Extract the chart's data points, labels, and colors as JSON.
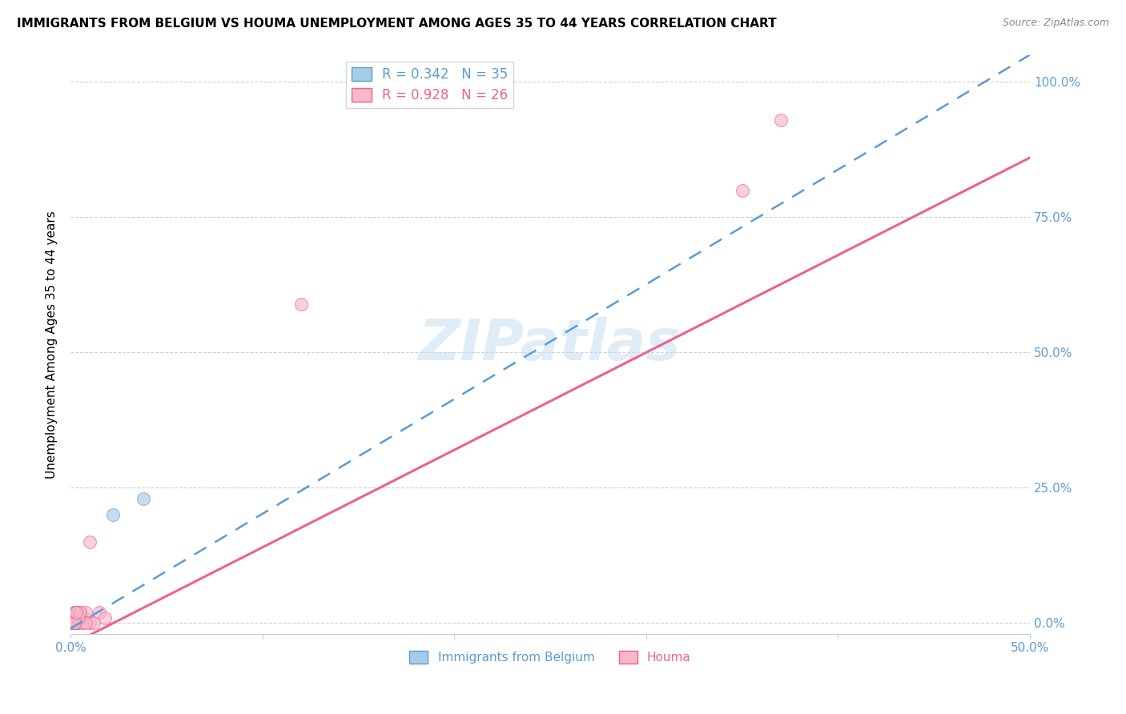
{
  "title": "IMMIGRANTS FROM BELGIUM VS HOUMA UNEMPLOYMENT AMONG AGES 35 TO 44 YEARS CORRELATION CHART",
  "source": "Source: ZipAtlas.com",
  "ylabel": "Unemployment Among Ages 35 to 44 years",
  "xlim": [
    0.0,
    0.5
  ],
  "ylim": [
    -0.02,
    1.05
  ],
  "y_tick_vals": [
    0.0,
    0.25,
    0.5,
    0.75,
    1.0
  ],
  "y_tick_labels": [
    "0.0%",
    "25.0%",
    "50.0%",
    "75.0%",
    "100.0%"
  ],
  "x_tick_vals": [
    0.0,
    0.1,
    0.2,
    0.3,
    0.4,
    0.5
  ],
  "x_tick_labels_show": {
    "0.0": "0.0%",
    "0.5": "50.0%"
  },
  "legend1_label": "R = 0.342   N = 35",
  "legend2_label": "R = 0.928   N = 26",
  "legend_bottom1": "Immigrants from Belgium",
  "legend_bottom2": "Houma",
  "blue_fill": "#a8cce8",
  "blue_edge": "#5b9bd5",
  "pink_fill": "#f7b8c8",
  "pink_edge": "#f06090",
  "pink_line": "#f06090",
  "blue_line": "#5b9bd5",
  "tick_color": "#5b9bd5",
  "watermark_text": "ZIPatlas",
  "watermark_color": "#c8ddf0",
  "title_fontsize": 11,
  "ylabel_fontsize": 11,
  "tick_fontsize": 11,
  "marker_size": 130,
  "blue_points_x": [
    0.002,
    0.003,
    0.001,
    0.002,
    0.003,
    0.001,
    0.003,
    0.001,
    0.002,
    0.003,
    0.001,
    0.002,
    0.001,
    0.002,
    0.003,
    0.001,
    0.002,
    0.001,
    0.002,
    0.001,
    0.001,
    0.002,
    0.001,
    0.001,
    0.002,
    0.001,
    0.001,
    0.002,
    0.001,
    0.002,
    0.001,
    0.002,
    0.003,
    0.022,
    0.038
  ],
  "blue_points_y": [
    0.01,
    0.01,
    0.01,
    0.02,
    0.01,
    0.0,
    0.02,
    0.01,
    0.0,
    0.0,
    0.0,
    0.01,
    0.0,
    0.01,
    0.02,
    0.01,
    0.01,
    0.0,
    0.02,
    0.01,
    0.0,
    0.01,
    0.01,
    0.0,
    0.01,
    0.0,
    0.01,
    0.0,
    0.0,
    0.0,
    0.0,
    0.0,
    0.0,
    0.2,
    0.23
  ],
  "pink_points_x": [
    0.001,
    0.002,
    0.003,
    0.004,
    0.005,
    0.007,
    0.008,
    0.01,
    0.01,
    0.012,
    0.015,
    0.018,
    0.002,
    0.003,
    0.004,
    0.005,
    0.006,
    0.008,
    0.003,
    0.004,
    0.005,
    0.12,
    0.35,
    0.37,
    0.002,
    0.003
  ],
  "pink_points_y": [
    0.0,
    0.01,
    0.0,
    0.01,
    0.02,
    0.01,
    0.02,
    0.15,
    0.0,
    0.0,
    0.02,
    0.01,
    0.01,
    0.0,
    0.0,
    0.01,
    0.0,
    0.0,
    0.02,
    0.01,
    0.02,
    0.59,
    0.8,
    0.93,
    0.0,
    0.02
  ],
  "blue_line_x0": 0.0,
  "blue_line_y0": -0.01,
  "blue_line_x1": 0.5,
  "blue_line_y1": 1.05,
  "pink_line_x0": 0.0,
  "pink_line_y0": -0.04,
  "pink_line_x1": 0.5,
  "pink_line_y1": 0.86
}
